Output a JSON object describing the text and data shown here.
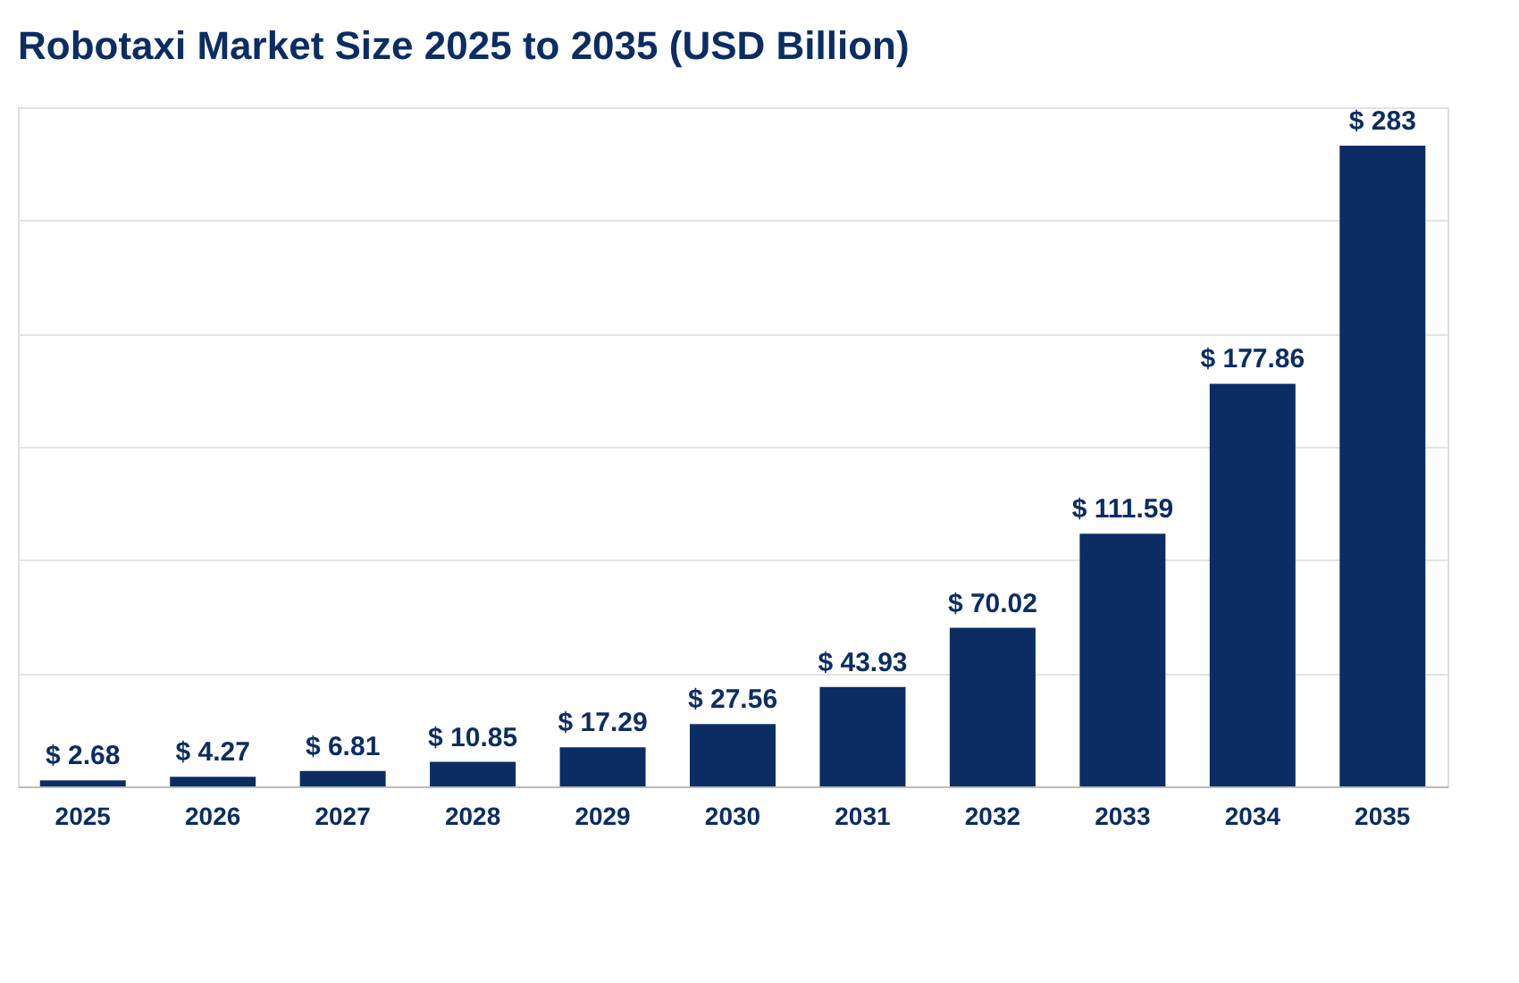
{
  "chart_data": {
    "type": "bar",
    "title": "Robotaxi Market Size 2025 to 2035 (USD Billion)",
    "categories": [
      "2025",
      "2026",
      "2027",
      "2028",
      "2029",
      "2030",
      "2031",
      "2032",
      "2033",
      "2034",
      "2035"
    ],
    "values": [
      2.68,
      4.27,
      6.81,
      10.85,
      17.29,
      27.56,
      43.93,
      70.02,
      111.59,
      177.86,
      283
    ],
    "value_labels": [
      "$ 2.68",
      "$ 4.27",
      "$ 6.81",
      "$ 10.85",
      "$ 17.29",
      "$ 27.56",
      "$ 43.93",
      "$ 70.02",
      "$ 111.59",
      "$ 177.86",
      "$ 283"
    ],
    "color": "#0b2d63",
    "ylim": [
      0,
      300
    ],
    "yticks": [
      {
        "value": 0,
        "label": null
      },
      {
        "value": 50,
        "label": null
      },
      {
        "value": 100,
        "label": null
      },
      {
        "value": 150,
        "label": null
      },
      {
        "value": 200,
        "label": null
      },
      {
        "value": 250,
        "label": null
      },
      {
        "value": 300,
        "label": null
      }
    ],
    "tick_labels": "x",
    "grid": "y"
  }
}
